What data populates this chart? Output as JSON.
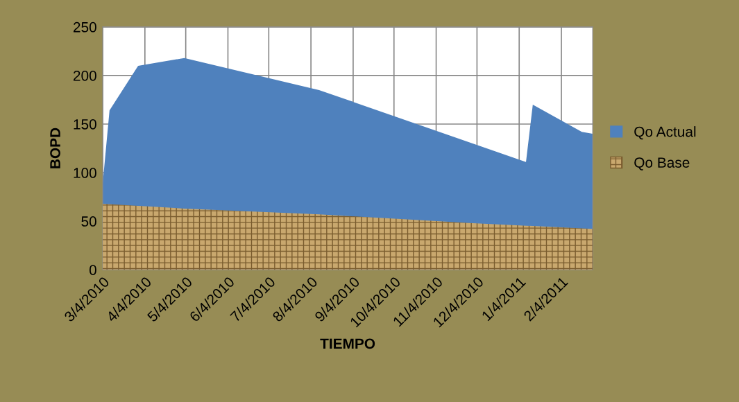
{
  "chart_data": {
    "type": "area",
    "xlabel": "TIEMPO",
    "ylabel": "BOPD",
    "series": [
      {
        "name": "Qo Actual",
        "color": "#4f81bd",
        "x": [
          "2010-03-04",
          "2010-03-09",
          "2010-03-30",
          "2010-05-03",
          "2010-08-10",
          "2011-01-09",
          "2011-01-14",
          "2011-02-19",
          "2011-02-27"
        ],
        "values": [
          89,
          164,
          210,
          218,
          185,
          111,
          170,
          142,
          140
        ]
      },
      {
        "name": "Qo Base",
        "color": "#c9a86e",
        "x": [
          "2010-03-04",
          "2010-05-03",
          "2010-08-10",
          "2010-12-01",
          "2011-02-27"
        ],
        "values": [
          68,
          63,
          57,
          48,
          42
        ]
      }
    ],
    "xlim": [
      "2010-03-04",
      "2011-02-27"
    ],
    "xticks": [
      {
        "value": "2010-03-04",
        "label": "3/4/2010"
      },
      {
        "value": "2010-04-04",
        "label": "4/4/2010"
      },
      {
        "value": "2010-05-04",
        "label": "5/4/2010"
      },
      {
        "value": "2010-06-04",
        "label": "6/4/2010"
      },
      {
        "value": "2010-07-04",
        "label": "7/4/2010"
      },
      {
        "value": "2010-08-04",
        "label": "8/4/2010"
      },
      {
        "value": "2010-09-04",
        "label": "9/4/2010"
      },
      {
        "value": "2010-10-04",
        "label": "10/4/2010"
      },
      {
        "value": "2010-11-04",
        "label": "11/4/2010"
      },
      {
        "value": "2010-12-04",
        "label": "12/4/2010"
      },
      {
        "value": "2011-01-04",
        "label": "1/4/2011"
      },
      {
        "value": "2011-02-04",
        "label": "2/4/2011"
      }
    ],
    "ylim": [
      0,
      250
    ],
    "yticks": [
      0,
      50,
      100,
      150,
      200,
      250
    ],
    "grid": true,
    "legend": "right"
  }
}
